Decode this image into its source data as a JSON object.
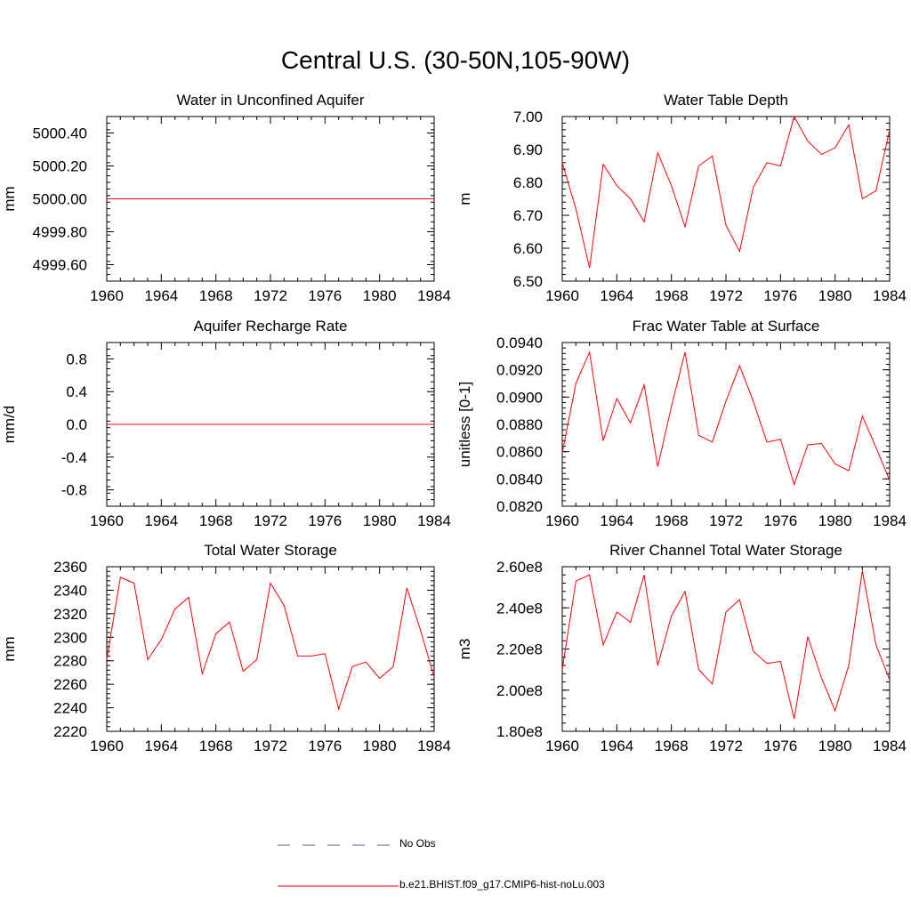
{
  "title": "Central U.S. (30-50N,105-90W)",
  "colors": {
    "model": "#ff0000",
    "obs": "#5a5a9e",
    "axis": "#000000"
  },
  "legend": {
    "obs_label": "No Obs",
    "model_label": "b.e21.BHIST.f09_g17.CMIP6-hist-noLu.003"
  },
  "chart_data": [
    {
      "type": "line",
      "title": "Water in Unconfined Aquifer",
      "ylabel": "mm",
      "xlim": [
        1960,
        1984
      ],
      "x_ticks": [
        1960,
        1964,
        1968,
        1972,
        1976,
        1980,
        1984
      ],
      "x_tick_labels": [
        "1960",
        "1964",
        "1968",
        "1972",
        "1976",
        "1980",
        "1984"
      ],
      "ylim": [
        4999.5,
        5000.5
      ],
      "y_ticks": [
        4999.6,
        4999.8,
        5000.0,
        5000.2,
        5000.4
      ],
      "y_tick_labels": [
        "4999.60",
        "4999.80",
        "5000.00",
        "5000.20",
        "5000.40"
      ],
      "y_minor_step": 0.04,
      "x": [
        1960,
        1961,
        1962,
        1963,
        1964,
        1965,
        1966,
        1967,
        1968,
        1969,
        1970,
        1971,
        1972,
        1973,
        1974,
        1975,
        1976,
        1977,
        1978,
        1979,
        1980,
        1981,
        1982,
        1983,
        1984
      ],
      "series": [
        {
          "name": "b.e21.BHIST.f09_g17.CMIP6-hist-noLu.003",
          "values": [
            5000,
            5000,
            5000,
            5000,
            5000,
            5000,
            5000,
            5000,
            5000,
            5000,
            5000,
            5000,
            5000,
            5000,
            5000,
            5000,
            5000,
            5000,
            5000,
            5000,
            5000,
            5000,
            5000,
            5000,
            5000
          ]
        }
      ]
    },
    {
      "type": "line",
      "title": "Water Table Depth",
      "ylabel": "m",
      "xlim": [
        1960,
        1984
      ],
      "x_ticks": [
        1960,
        1964,
        1968,
        1972,
        1976,
        1980,
        1984
      ],
      "x_tick_labels": [
        "1960",
        "1964",
        "1968",
        "1972",
        "1976",
        "1980",
        "1984"
      ],
      "ylim": [
        6.5,
        7.0
      ],
      "y_ticks": [
        6.5,
        6.6,
        6.7,
        6.8,
        6.9,
        7.0
      ],
      "y_tick_labels": [
        "6.50",
        "6.60",
        "6.70",
        "6.80",
        "6.90",
        "7.00"
      ],
      "y_minor_step": 0.02,
      "x": [
        1960,
        1961,
        1962,
        1963,
        1964,
        1965,
        1966,
        1967,
        1968,
        1969,
        1970,
        1971,
        1972,
        1973,
        1974,
        1975,
        1976,
        1977,
        1978,
        1979,
        1980,
        1981,
        1982,
        1983,
        1984
      ],
      "series": [
        {
          "name": "b.e21.BHIST.f09_g17.CMIP6-hist-noLu.003",
          "values": [
            6.86,
            6.72,
            6.54,
            6.855,
            6.79,
            6.75,
            6.68,
            6.89,
            6.79,
            6.665,
            6.85,
            6.88,
            6.67,
            6.59,
            6.785,
            6.86,
            6.85,
            7.0,
            6.925,
            6.885,
            6.905,
            6.975,
            6.75,
            6.775,
            6.96
          ]
        }
      ]
    },
    {
      "type": "line",
      "title": "Aquifer Recharge Rate",
      "ylabel": "mm/d",
      "xlim": [
        1960,
        1984
      ],
      "x_ticks": [
        1960,
        1964,
        1968,
        1972,
        1976,
        1980,
        1984
      ],
      "x_tick_labels": [
        "1960",
        "1964",
        "1968",
        "1972",
        "1976",
        "1980",
        "1984"
      ],
      "ylim": [
        -1.0,
        1.0
      ],
      "y_ticks": [
        -0.8,
        -0.4,
        0.0,
        0.4,
        0.8
      ],
      "y_tick_labels": [
        "-0.8",
        "-0.4",
        "0.0",
        "0.4",
        "0.8"
      ],
      "y_minor_step": 0.08,
      "x": [
        1960,
        1961,
        1962,
        1963,
        1964,
        1965,
        1966,
        1967,
        1968,
        1969,
        1970,
        1971,
        1972,
        1973,
        1974,
        1975,
        1976,
        1977,
        1978,
        1979,
        1980,
        1981,
        1982,
        1983,
        1984
      ],
      "series": [
        {
          "name": "b.e21.BHIST.f09_g17.CMIP6-hist-noLu.003",
          "values": [
            0,
            0,
            0,
            0,
            0,
            0,
            0,
            0,
            0,
            0,
            0,
            0,
            0,
            0,
            0,
            0,
            0,
            0,
            0,
            0,
            0,
            0,
            0,
            0,
            0
          ]
        }
      ]
    },
    {
      "type": "line",
      "title": "Frac Water Table at Surface",
      "ylabel": "unitless [0-1]",
      "xlim": [
        1960,
        1984
      ],
      "x_ticks": [
        1960,
        1964,
        1968,
        1972,
        1976,
        1980,
        1984
      ],
      "x_tick_labels": [
        "1960",
        "1964",
        "1968",
        "1972",
        "1976",
        "1980",
        "1984"
      ],
      "ylim": [
        0.082,
        0.094
      ],
      "y_ticks": [
        0.082,
        0.084,
        0.086,
        0.088,
        0.09,
        0.092,
        0.094
      ],
      "y_tick_labels": [
        "0.0820",
        "0.0840",
        "0.0860",
        "0.0880",
        "0.0900",
        "0.0920",
        "0.0940"
      ],
      "y_minor_step": 0.0004,
      "x": [
        1960,
        1961,
        1962,
        1963,
        1964,
        1965,
        1966,
        1967,
        1968,
        1969,
        1970,
        1971,
        1972,
        1973,
        1974,
        1975,
        1976,
        1977,
        1978,
        1979,
        1980,
        1981,
        1982,
        1983,
        1984
      ],
      "series": [
        {
          "name": "b.e21.BHIST.f09_g17.CMIP6-hist-noLu.003",
          "values": [
            0.0859,
            0.091,
            0.0933,
            0.0868,
            0.0899,
            0.0881,
            0.0909,
            0.0849,
            0.0893,
            0.0933,
            0.0872,
            0.0867,
            0.0897,
            0.0923,
            0.0897,
            0.0867,
            0.0869,
            0.0836,
            0.0865,
            0.0866,
            0.0851,
            0.0846,
            0.0886,
            0.0863,
            0.0839
          ]
        }
      ]
    },
    {
      "type": "line",
      "title": "Total Water Storage",
      "ylabel": "mm",
      "xlim": [
        1960,
        1984
      ],
      "x_ticks": [
        1960,
        1964,
        1968,
        1972,
        1976,
        1980,
        1984
      ],
      "x_tick_labels": [
        "1960",
        "1964",
        "1968",
        "1972",
        "1976",
        "1980",
        "1984"
      ],
      "ylim": [
        2220,
        2360
      ],
      "y_ticks": [
        2220,
        2240,
        2260,
        2280,
        2300,
        2320,
        2340,
        2360
      ],
      "y_tick_labels": [
        "2220",
        "2240",
        "2260",
        "2280",
        "2300",
        "2320",
        "2340",
        "2360"
      ],
      "y_minor_step": 4,
      "x": [
        1960,
        1961,
        1962,
        1963,
        1964,
        1965,
        1966,
        1967,
        1968,
        1969,
        1970,
        1971,
        1972,
        1973,
        1974,
        1975,
        1976,
        1977,
        1978,
        1979,
        1980,
        1981,
        1982,
        1983,
        1984
      ],
      "series": [
        {
          "name": "b.e21.BHIST.f09_g17.CMIP6-hist-noLu.003",
          "values": [
            2281,
            2351,
            2346,
            2281,
            2298,
            2324,
            2334,
            2269,
            2303,
            2313,
            2271,
            2281,
            2346,
            2327,
            2284,
            2284,
            2286,
            2239,
            2275,
            2279,
            2265,
            2275,
            2342,
            2306,
            2266
          ]
        }
      ]
    },
    {
      "type": "line",
      "title": "River Channel Total Water Storage",
      "ylabel": "m3",
      "xlim": [
        1960,
        1984
      ],
      "x_ticks": [
        1960,
        1964,
        1968,
        1972,
        1976,
        1980,
        1984
      ],
      "x_tick_labels": [
        "1960",
        "1964",
        "1968",
        "1972",
        "1976",
        "1980",
        "1984"
      ],
      "ylim": [
        180000000,
        260000000
      ],
      "y_ticks": [
        180000000,
        200000000,
        220000000,
        240000000,
        260000000
      ],
      "y_tick_labels": [
        "1.80e8",
        "2.00e8",
        "2.20e8",
        "2.40e8",
        "2.60e8"
      ],
      "y_minor_step": 4000000,
      "x": [
        1960,
        1961,
        1962,
        1963,
        1964,
        1965,
        1966,
        1967,
        1968,
        1969,
        1970,
        1971,
        1972,
        1973,
        1974,
        1975,
        1976,
        1977,
        1978,
        1979,
        1980,
        1981,
        1982,
        1983,
        1984
      ],
      "series": [
        {
          "name": "b.e21.BHIST.f09_g17.CMIP6-hist-noLu.003",
          "values": [
            210000000,
            253000000,
            256000000,
            222000000,
            238000000,
            233000000,
            256000000,
            212000000,
            236000000,
            248000000,
            210000000,
            203000000,
            238000000,
            244000000,
            219000000,
            213000000,
            214000000,
            186000000,
            226000000,
            206000000,
            190000000,
            212000000,
            258000000,
            222000000,
            205000000
          ]
        }
      ]
    }
  ]
}
